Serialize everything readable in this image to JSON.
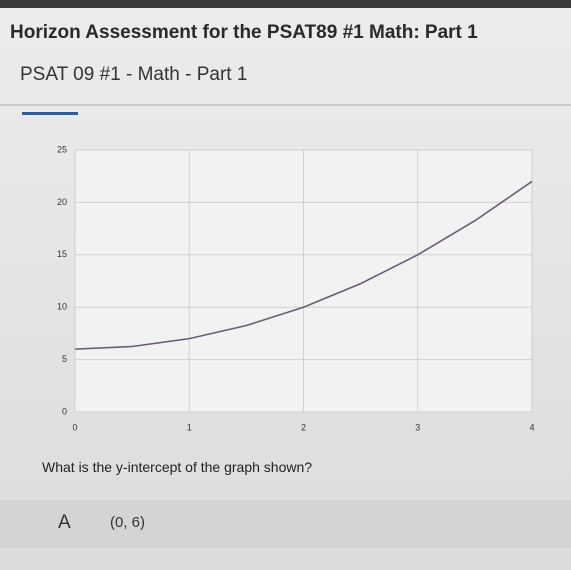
{
  "header": {
    "title": "Horizon Assessment for the PSAT89 #1 Math: Part 1",
    "subtitle": "PSAT 09 #1 - Math - Part 1"
  },
  "chart_data": {
    "type": "line",
    "x": [
      0,
      0.5,
      1,
      1.5,
      2,
      2.5,
      3,
      3.5,
      4
    ],
    "values": [
      6,
      6.25,
      7,
      8.25,
      10,
      12.25,
      15,
      18.25,
      22
    ],
    "color": "#6b5a78",
    "xlim": [
      0,
      4
    ],
    "ylim": [
      0,
      25
    ],
    "xticks": [
      0,
      1,
      2,
      3,
      4
    ],
    "yticks": [
      0,
      5,
      10,
      15,
      20,
      25
    ],
    "grid": true
  },
  "question": {
    "text": "What is the y-intercept of the graph shown?"
  },
  "choices": [
    {
      "letter": "A",
      "text": "(0, 6)"
    }
  ]
}
